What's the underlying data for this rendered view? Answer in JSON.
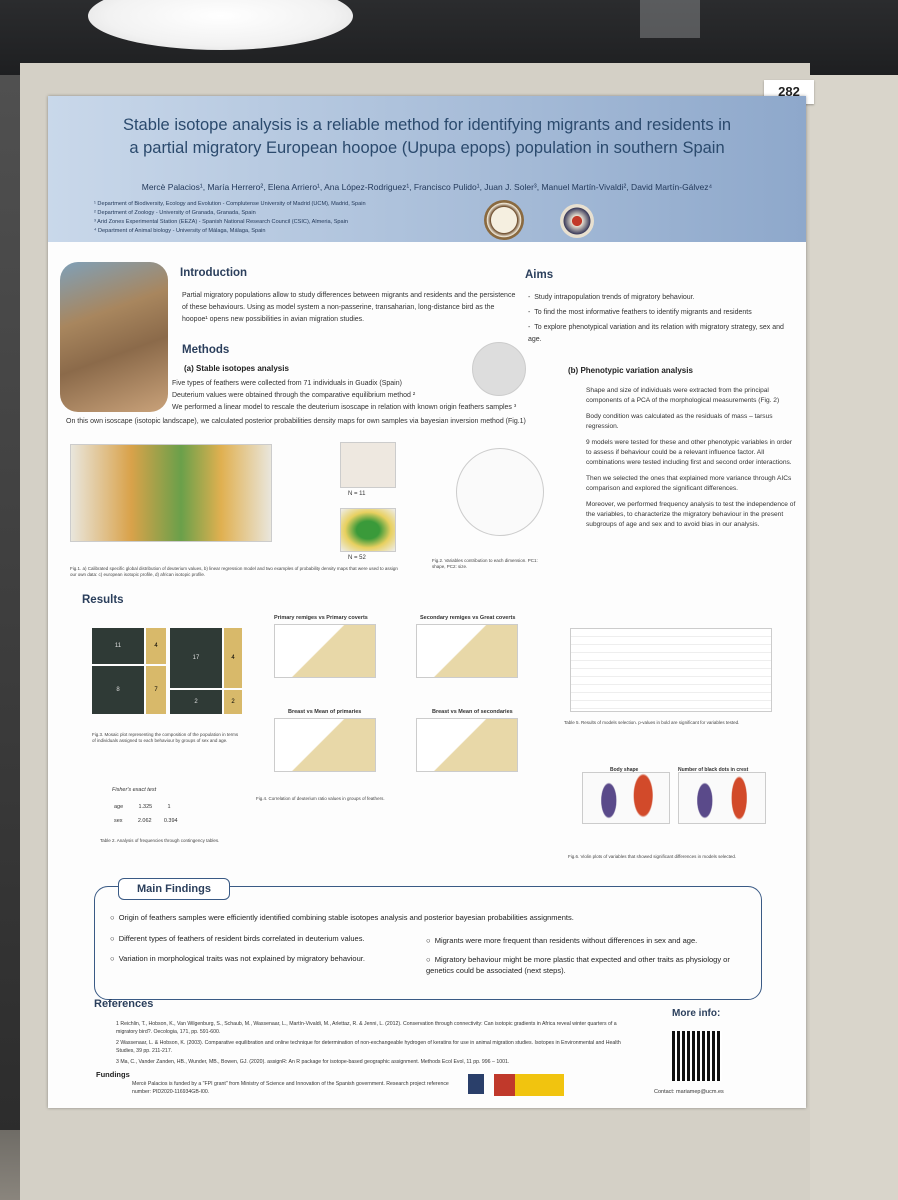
{
  "poster_number": "282",
  "title_line1": "Stable isotope analysis is a reliable method for identifying migrants and residents in",
  "title_line2": "a partial migratory European hoopoe (Upupa epops) population in southern Spain",
  "authors": "Mercè Palacios¹, María Herrero², Elena Arriero¹, Ana López-Rodriguez¹, Francisco Pulido¹, Juan J. Soler³, Manuel Martín-Vivaldi², David Martín-Gálvez⁴",
  "affiliations": [
    "¹ Department of Biodiversity, Ecology and Evolution - Complutense University of Madrid (UCM), Madrid, Spain",
    "² Department of Zoology - University of Granada, Granada, Spain",
    "³ Arid Zones Experimental Station (EEZA) - Spanish National Research Council (CSIC), Almeria, Spain",
    "⁴ Department of Animal biology - University of Málaga, Málaga, Spain"
  ],
  "intro_heading": "Introduction",
  "intro_text": "Partial migratory populations allow to study differences between migrants and residents and the persistence of these behaviours. Using as model system a non-passerine, transaharian, long-distance bird as the hoopoe¹ opens new possibilities in avian migration studies.",
  "aims_heading": "Aims",
  "aims": [
    "Study intrapopulation trends of migratory behaviour.",
    "To find the most informative feathers to identify migrants and residents",
    "To explore phenotypical variation and its relation with migratory strategy, sex and age."
  ],
  "methods_heading": "Methods",
  "methods_a_heading": "(a) Stable isotopes analysis",
  "methods_a_lines": [
    "Five types of feathers were collected from 71 individuals in Guadix (Spain)",
    "Deuterium values were obtained through the comparative equilibrium method ²",
    "We performed a linear model to rescale the deuterium isoscape in relation with known origin feathers samples ³",
    "On this own isoscape (isotopic landscape), we calculated posterior probabilities density maps for own samples via bayesian inversion method (Fig.1)"
  ],
  "methods_b_heading": "(b) Phenotypic variation analysis",
  "methods_b_paras": [
    "Shape and size of individuals were extracted from the principal components of a PCA of the morphological measurements (Fig. 2)",
    "Body condition was calculated as the residuals of mass – tarsus regression.",
    "9 models were tested for these and other phenotypic variables in order to assess if behaviour could be a relevant influence factor. All combinations were tested including first and second order interactions.",
    "Then we selected the ones that explained more variance through AICs comparison and explored the significant differences.",
    "Moreover, we performed frequency analysis to test the independence of the variables, to characterize the migratory behaviour in the present subgroups of age and sex and to avoid bias in our analysis."
  ],
  "results_heading": "Results",
  "fig1_caption": "Fig.1. a) Calibrated specific global distribution of deuterium values, b) linear regression model and two examples of probability density maps that were used to assign our own data: c) european isotopic profile, d) african isotopic profile.",
  "fig1_n11": "N = 11",
  "fig1_n52": "N = 52",
  "fig2_caption": "Fig.2. Variables contribution to each dimension. PC1: shape, PC2: size.",
  "fig3_caption": "Fig.3. Mosaic plot representing the composition of the population in terms of individuals assigned to each behaviour by groups of sex and age.",
  "fig4_caption": "Fig.4. Correlation of deuterium ratio values in groups of feathers.",
  "fig4_titles": [
    "Primary remiges vs Primary coverts",
    "Secondary remiges vs Great coverts",
    "Breast vs Mean of primaries",
    "Breast vs Mean of secondaries"
  ],
  "table5_caption": "Table 5. Results of models selection. p-values in bold are significant for variables tested.",
  "fig6_caption": "Fig.6. Violin plots of variables that showed significant differences in models selected.",
  "fig6_titles": [
    "Body shape",
    "Number of black dots in crest"
  ],
  "fisher_title": "Fisher's exact test",
  "fisher_rows": [
    [
      "age",
      "1.325",
      "1"
    ],
    [
      "sex",
      "2.062",
      "0.394"
    ]
  ],
  "table2_caption": "Table 2. Analysis of frequencies through contingency tables.",
  "mosaic_counts": {
    "adult_female_migrant": "11",
    "adult_female_resident": "4",
    "juv_female_migrant": "17",
    "juv_female_resident": "4",
    "adult_male_migrant": "8",
    "adult_male_resident": "7",
    "juv_male_migrant": "2",
    "juv_male_resident": "2"
  },
  "main_findings_heading": "Main Findings",
  "findings": [
    "Origin of feathers samples were efficiently identified combining stable isotopes analysis and posterior bayesian probabilities assignments.",
    "Different types of feathers of resident birds correlated in deuterium values.",
    "Migrants were more frequent than residents without differences in sex and age.",
    "Variation in morphological traits was not explained by migratory behaviour.",
    "Migratory behaviour might be more plastic that expected and other traits as physiology or genetics could be associated (next steps)."
  ],
  "references_heading": "References",
  "references": [
    "1  Reichlin, T., Hobson, K., Van Wilgenburg, S., Schaub, M., Wassenaar, L., Martín-Vivaldi, M., Arlettaz, R. & Jenni, L. (2012). Conservation through connectivity: Can isotopic gradients in Africa reveal winter quarters of a migratory bird?. Oecologia, 171, pp. 591-600.",
    "2  Wassenaar, L. & Hobson, K. (2003). Comparative equilibration and online technique for determination of non-exchangeable hydrogen of keratins for use in animal migration studies. Isotopes in Environmental and Health Studies, 39 pp. 211-217.",
    "3  Ma, C., Vander Zanden, HB., Wunder, MB., Bowen, GJ. (2020). assignR: An R package for isotope-based geographic assignment. Methods Ecol Evol, 11 pp. 996 – 1001."
  ],
  "more_info": "More info:",
  "contact": "Contact: mariamep@ucm.es",
  "fundings_heading": "Fundings",
  "fundings_text": "Mercè Palacios is funded by a \"FPI grant\" from Ministry of Science and Innovation of the Spanish government. Research project reference number: PID2020-116934GB-I00.",
  "colors": {
    "header_start": "#c9d8ea",
    "header_end": "#8ea8cb",
    "accent": "#3a5a85",
    "migrant": "#2f3a36",
    "resident": "#d8b96a"
  }
}
